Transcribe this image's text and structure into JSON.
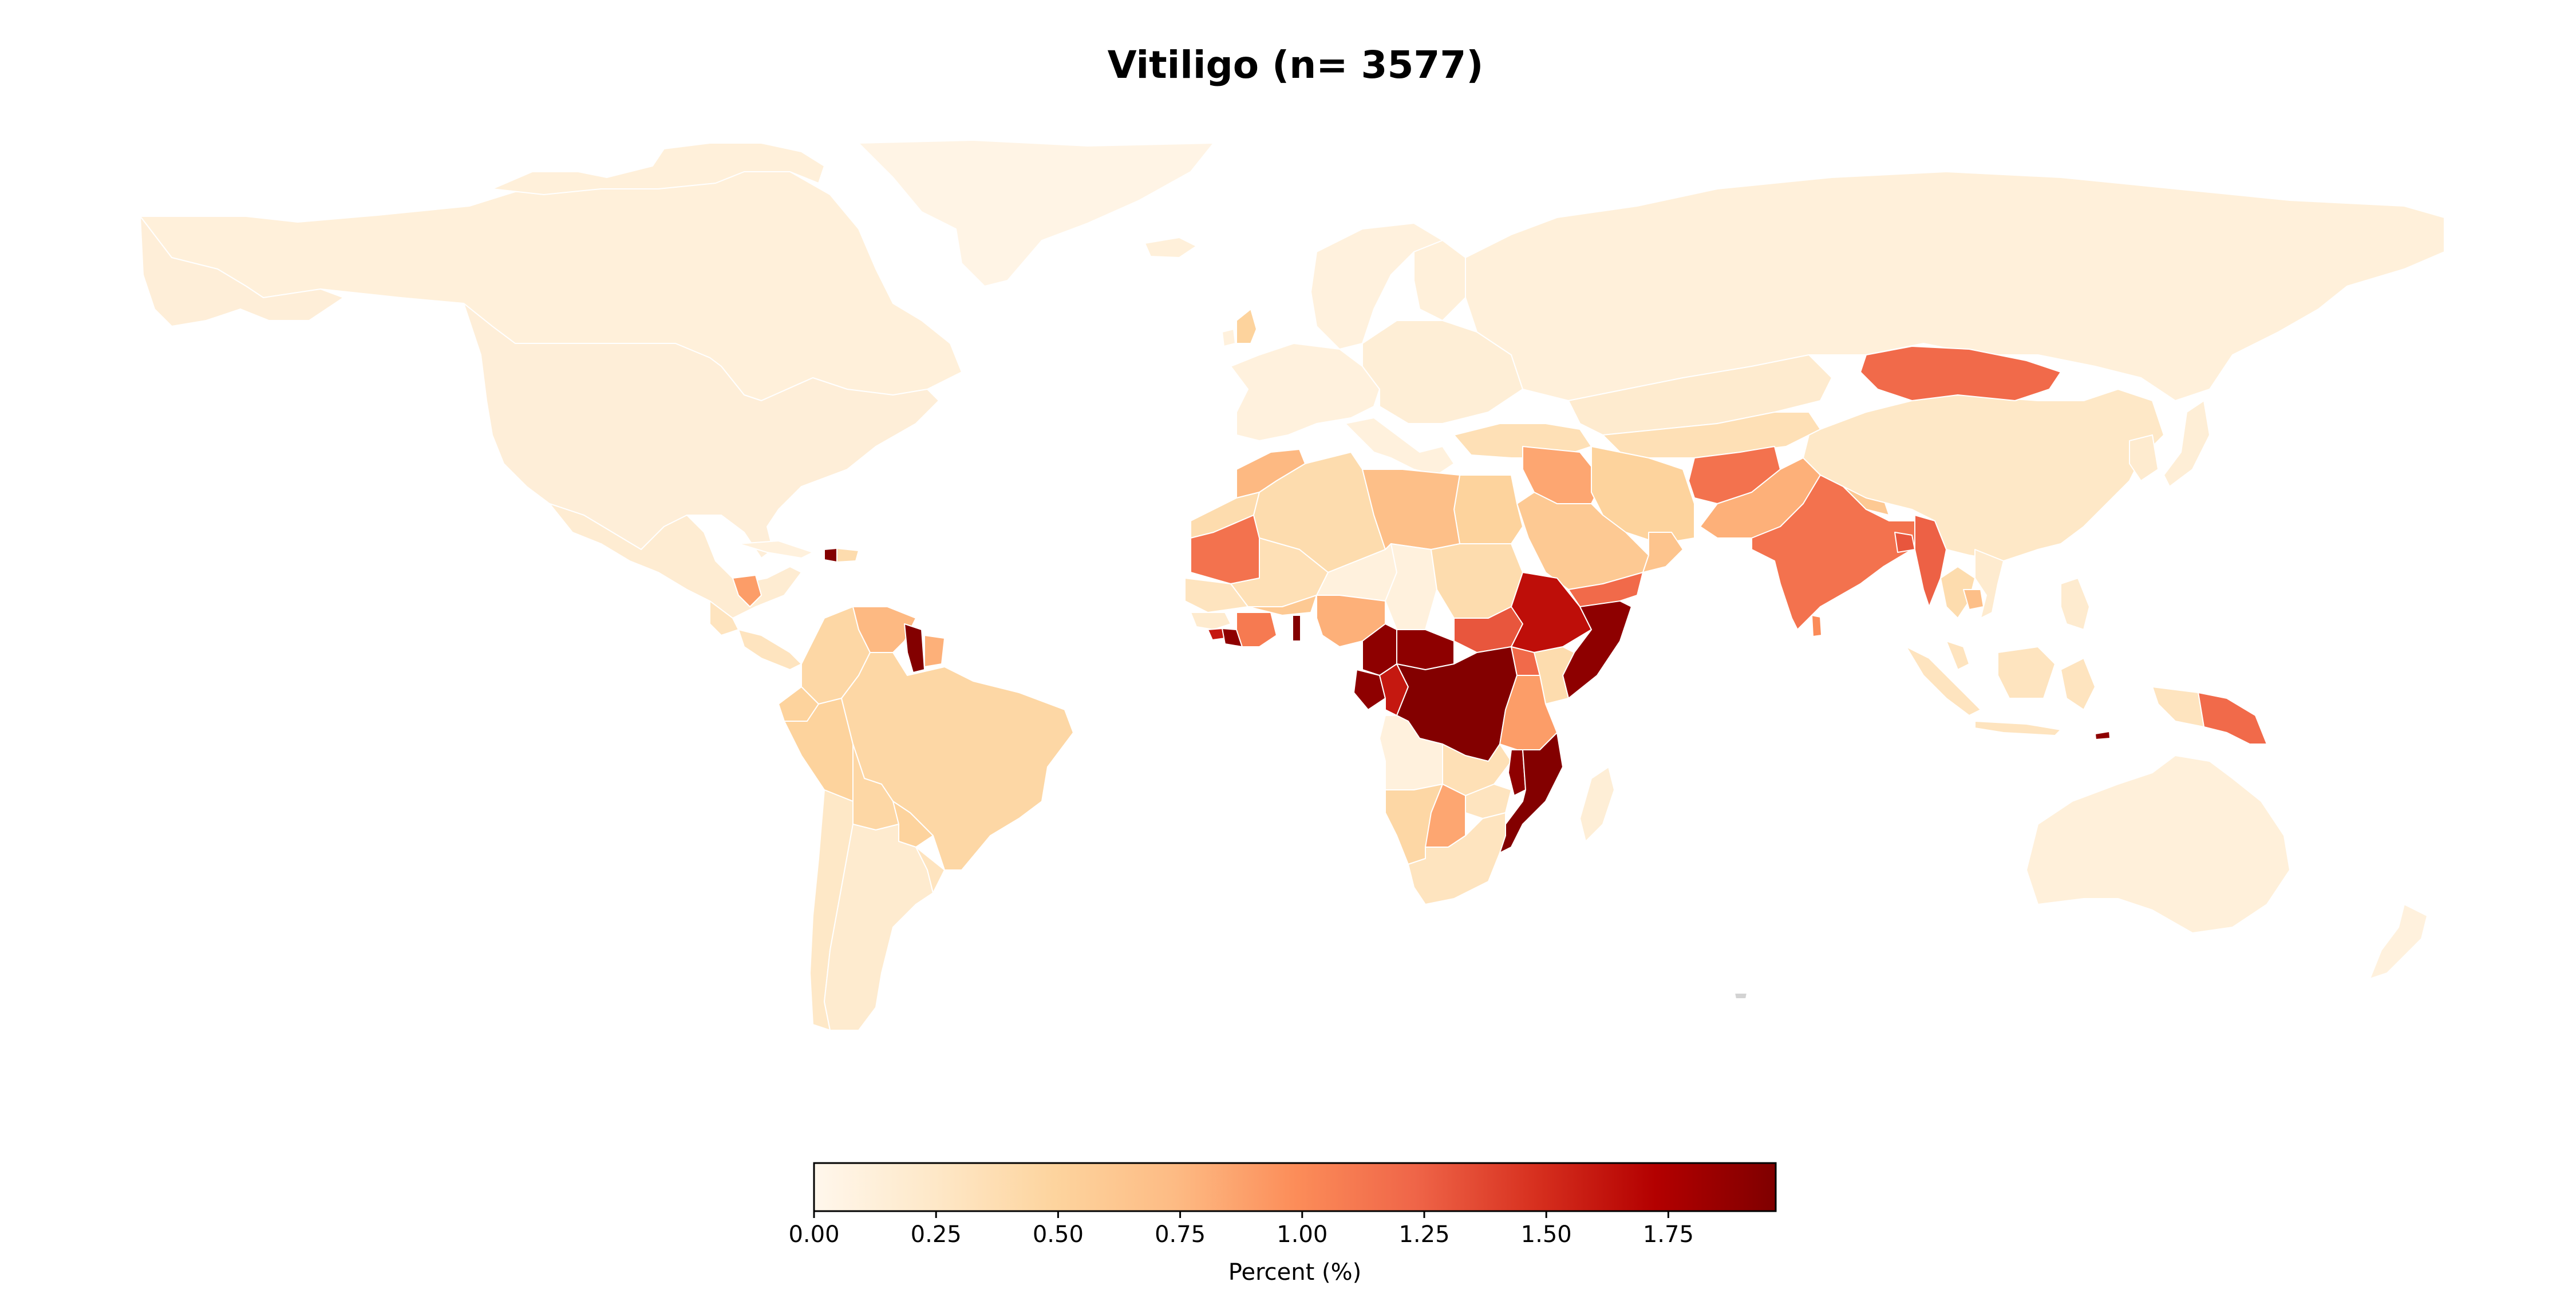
{
  "title": "Vitiligo (n= 3577)",
  "colorbar": {
    "label": "Percent (%)",
    "min": 0,
    "max": 1.97,
    "ticks": [
      "0.00",
      "0.25",
      "0.50",
      "0.75",
      "1.00",
      "1.25",
      "1.50",
      "1.75"
    ],
    "colormap": "OrRd",
    "stops": [
      {
        "value": 0.0,
        "color": "#fff7ec"
      },
      {
        "value": 0.125,
        "color": "#fee8c8"
      },
      {
        "value": 0.25,
        "color": "#fdd49e"
      },
      {
        "value": 0.375,
        "color": "#fdbb84"
      },
      {
        "value": 0.5,
        "color": "#fc8d59"
      },
      {
        "value": 0.625,
        "color": "#ef6548"
      },
      {
        "value": 0.75,
        "color": "#d7301f"
      },
      {
        "value": 0.875,
        "color": "#b30000"
      },
      {
        "value": 1.0,
        "color": "#7f0000"
      }
    ]
  },
  "no_data_color": "#d3d3d3",
  "chart_data": {
    "type": "choropleth",
    "unit": "Percent (%)",
    "regions": [
      {
        "id": "canada",
        "value": 0.12
      },
      {
        "id": "greenland",
        "value": 0.05
      },
      {
        "id": "usa",
        "value": 0.14
      },
      {
        "id": "mexico",
        "value": 0.18
      },
      {
        "id": "guatemala",
        "value": 0.3
      },
      {
        "id": "honduras",
        "value": 0.9
      },
      {
        "id": "cuba",
        "value": 0.1
      },
      {
        "id": "haiti",
        "value": 1.95
      },
      {
        "id": "dominican-republic",
        "value": 0.4
      },
      {
        "id": "colombia",
        "value": 0.45
      },
      {
        "id": "venezuela",
        "value": 0.75
      },
      {
        "id": "guyana",
        "value": 1.95
      },
      {
        "id": "suriname",
        "value": 0.8
      },
      {
        "id": "brazil",
        "value": 0.45
      },
      {
        "id": "ecuador",
        "value": 0.5
      },
      {
        "id": "peru",
        "value": 0.5
      },
      {
        "id": "bolivia",
        "value": 0.45
      },
      {
        "id": "paraguay",
        "value": 0.5
      },
      {
        "id": "argentina",
        "value": 0.2
      },
      {
        "id": "chile",
        "value": 0.25
      },
      {
        "id": "uruguay",
        "value": 0.3
      },
      {
        "id": "iceland",
        "value": 0.12
      },
      {
        "id": "uk",
        "value": 0.5
      },
      {
        "id": "norway-sweden",
        "value": 0.1
      },
      {
        "id": "finland",
        "value": 0.12
      },
      {
        "id": "western-europe",
        "value": 0.1
      },
      {
        "id": "eastern-europe",
        "value": 0.15
      },
      {
        "id": "russia",
        "value": 0.12
      },
      {
        "id": "kazakhstan",
        "value": 0.2
      },
      {
        "id": "central-asia",
        "value": 0.35
      },
      {
        "id": "turkey",
        "value": 0.35
      },
      {
        "id": "iran",
        "value": 0.5
      },
      {
        "id": "syria",
        "value": 0.85
      },
      {
        "id": "iraq",
        "value": 0.85
      },
      {
        "id": "saudi-arabia",
        "value": 0.6
      },
      {
        "id": "oman",
        "value": 0.65
      },
      {
        "id": "yemen",
        "value": 1.2
      },
      {
        "id": "afghanistan",
        "value": 1.15
      },
      {
        "id": "pakistan",
        "value": 0.8
      },
      {
        "id": "india",
        "value": 1.15
      },
      {
        "id": "nepal",
        "value": 0.6
      },
      {
        "id": "bangladesh",
        "value": 1.3
      },
      {
        "id": "myanmar",
        "value": 1.25
      },
      {
        "id": "sri-lanka",
        "value": 1.0
      },
      {
        "id": "china",
        "value": 0.25
      },
      {
        "id": "mongolia",
        "value": 1.2
      },
      {
        "id": "korea",
        "value": 0.2
      },
      {
        "id": "japan",
        "value": 0.15
      },
      {
        "id": "southeast-asia",
        "value": 0.3
      },
      {
        "id": "thailand",
        "value": 0.4
      },
      {
        "id": "cambodia",
        "value": 0.7
      },
      {
        "id": "vietnam",
        "value": 0.2
      },
      {
        "id": "philippines",
        "value": 0.2
      },
      {
        "id": "malaysia",
        "value": 0.3
      },
      {
        "id": "indonesia",
        "value": 0.3
      },
      {
        "id": "timor-leste",
        "value": 1.9
      },
      {
        "id": "papua-new-guinea",
        "value": 1.2
      },
      {
        "id": "australia",
        "value": 0.12
      },
      {
        "id": "new-zealand",
        "value": 0.1
      },
      {
        "id": "morocco",
        "value": 0.75
      },
      {
        "id": "algeria",
        "value": 0.4
      },
      {
        "id": "libya",
        "value": 0.7
      },
      {
        "id": "egypt",
        "value": 0.5
      },
      {
        "id": "mauritania",
        "value": 1.15
      },
      {
        "id": "western-sahara",
        "value": 0.4
      },
      {
        "id": "mali",
        "value": 0.35
      },
      {
        "id": "niger",
        "value": 0.1
      },
      {
        "id": "chad",
        "value": 0.1
      },
      {
        "id": "sudan",
        "value": 0.4
      },
      {
        "id": "senegal",
        "value": 0.3
      },
      {
        "id": "guinea",
        "value": 0.2
      },
      {
        "id": "sierra-leone",
        "value": 1.6
      },
      {
        "id": "liberia",
        "value": 1.9
      },
      {
        "id": "cote-divoire",
        "value": 1.1
      },
      {
        "id": "ghana",
        "value": 0.6
      },
      {
        "id": "togo",
        "value": 1.95
      },
      {
        "id": "nigeria",
        "value": 0.8
      },
      {
        "id": "cameroon",
        "value": 1.9
      },
      {
        "id": "car",
        "value": 1.9
      },
      {
        "id": "south-sudan",
        "value": 1.3
      },
      {
        "id": "ethiopia",
        "value": 1.65
      },
      {
        "id": "somalia",
        "value": 1.9
      },
      {
        "id": "gabon",
        "value": 1.9
      },
      {
        "id": "congo",
        "value": 1.6
      },
      {
        "id": "drc",
        "value": 1.95
      },
      {
        "id": "uganda",
        "value": 1.2
      },
      {
        "id": "kenya",
        "value": 0.4
      },
      {
        "id": "tanzania",
        "value": 0.9
      },
      {
        "id": "angola",
        "value": 0.1
      },
      {
        "id": "zambia",
        "value": 0.35
      },
      {
        "id": "malawi",
        "value": 1.9
      },
      {
        "id": "mozambique",
        "value": 1.95
      },
      {
        "id": "namibia",
        "value": 0.45
      },
      {
        "id": "botswana",
        "value": 0.85
      },
      {
        "id": "zimbabwe",
        "value": 0.3
      },
      {
        "id": "south-africa",
        "value": 0.3
      },
      {
        "id": "madagascar",
        "value": 0.15
      }
    ]
  }
}
